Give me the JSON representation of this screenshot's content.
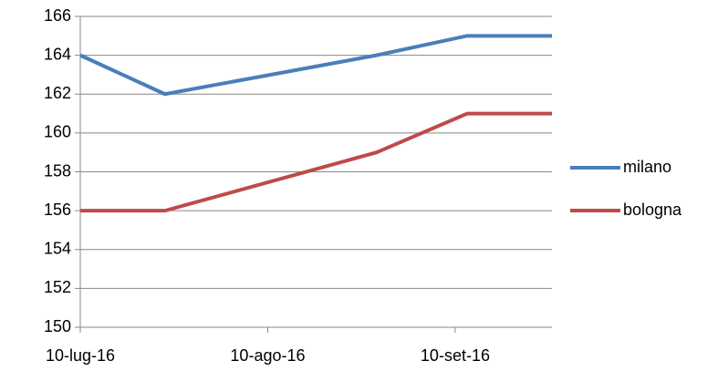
{
  "chart_data": {
    "type": "line",
    "x": [
      "2016-07-10",
      "2016-07-24",
      "2016-08-28",
      "2016-09-12",
      "2016-09-26"
    ],
    "series": [
      {
        "name": "milano",
        "color": "#4a7ebb",
        "values": [
          164,
          162,
          164,
          165,
          165
        ]
      },
      {
        "name": "bologna",
        "color": "#be4b48",
        "values": [
          156,
          156,
          159,
          161,
          161
        ]
      }
    ],
    "xlim": [
      "2016-07-10",
      "2016-09-26"
    ],
    "xticks": [
      {
        "value": "2016-07-10",
        "label": "10-lug-16"
      },
      {
        "value": "2016-08-10",
        "label": "10-ago-16"
      },
      {
        "value": "2016-09-10",
        "label": "10-set-16"
      }
    ],
    "ylim": [
      150,
      166
    ],
    "yticks": [
      150,
      152,
      154,
      156,
      158,
      160,
      162,
      164,
      166
    ],
    "grid": true,
    "legend": "right"
  }
}
